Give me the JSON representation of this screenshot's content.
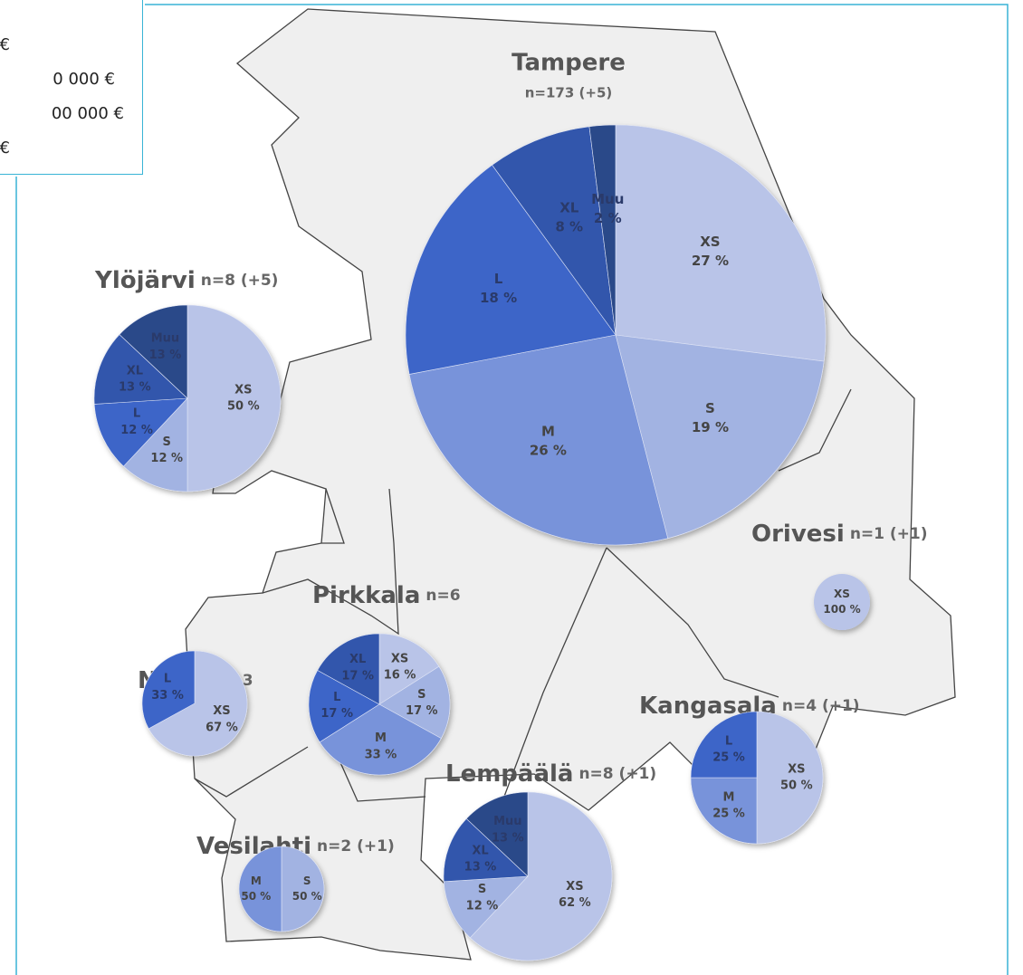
{
  "legend": {
    "lines": [
      "€",
      "0 000 €",
      "00 000 €",
      "€"
    ]
  },
  "slice_colors": {
    "XS": "#b9c4e8",
    "S": "#a2b3e2",
    "M": "#7893da",
    "L": "#3e65c8",
    "XL": "#3056ac",
    "Muu": "#2b4889"
  },
  "regions": [
    {
      "name": "Tampere",
      "n": "n=173 (+5)",
      "categories": [
        "XS",
        "S",
        "M",
        "L",
        "XL",
        "Muu"
      ],
      "values": [
        27,
        19,
        26,
        18,
        8,
        2
      ],
      "value_labels": [
        "27 %",
        "19 %",
        "26 %",
        "18 %",
        "8 %",
        "2 %"
      ]
    },
    {
      "name": "Ylöjärvi",
      "n": "n=8 (+5)",
      "categories": [
        "XS",
        "S",
        "L",
        "XL",
        "Muu"
      ],
      "values": [
        50,
        12,
        12,
        13,
        13
      ],
      "value_labels": [
        "50 %",
        "12 %",
        "12 %",
        "13 %",
        "13 %"
      ]
    },
    {
      "name": "Orivesi",
      "n": "n=1 (+1)",
      "categories": [
        "XS"
      ],
      "values": [
        100
      ],
      "value_labels": [
        "100 %"
      ]
    },
    {
      "name": "Pirkkala",
      "n": "n=6",
      "categories": [
        "XS",
        "S",
        "M",
        "L",
        "XL"
      ],
      "values": [
        16,
        17,
        33,
        17,
        17
      ],
      "value_labels": [
        "16 %",
        "17 %",
        "33 %",
        "17 %",
        "17 %"
      ]
    },
    {
      "name": "Nokia",
      "n": "n=3",
      "categories": [
        "XS",
        "L"
      ],
      "values": [
        67,
        33
      ],
      "value_labels": [
        "67 %",
        "33 %"
      ]
    },
    {
      "name": "Kangasala",
      "n": "n=4 (+1)",
      "categories": [
        "XS",
        "M",
        "L"
      ],
      "values": [
        50,
        25,
        25
      ],
      "value_labels": [
        "50 %",
        "25 %",
        "25 %"
      ]
    },
    {
      "name": "Lempäälä",
      "n": "n=8 (+1)",
      "categories": [
        "XS",
        "S",
        "XL",
        "Muu"
      ],
      "values": [
        62,
        12,
        13,
        13
      ],
      "value_labels": [
        "62 %",
        "12 %",
        "13 %",
        "13 %"
      ]
    },
    {
      "name": "Vesilahti",
      "n": "n=2 (+1)",
      "categories": [
        "S",
        "M"
      ],
      "values": [
        50,
        50
      ],
      "value_labels": [
        "50 %",
        "50 %"
      ]
    }
  ]
}
